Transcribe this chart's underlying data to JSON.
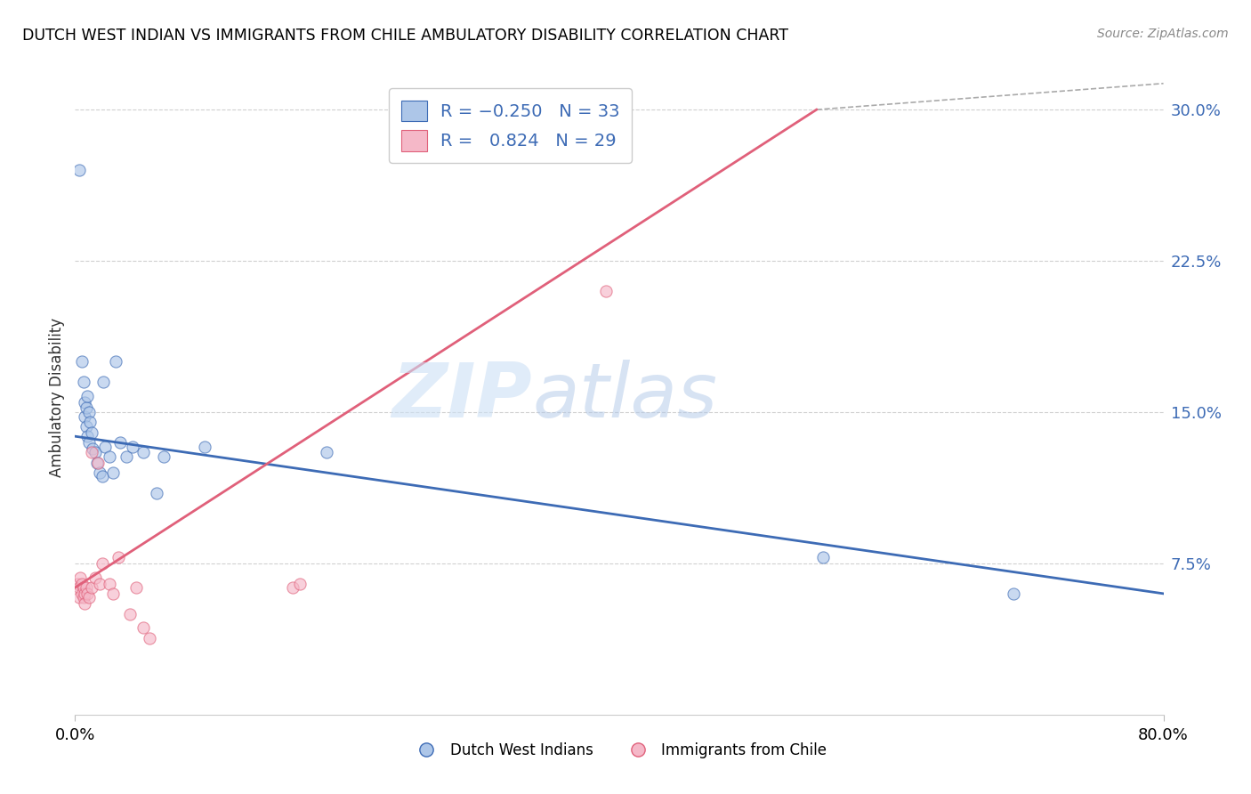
{
  "title": "DUTCH WEST INDIAN VS IMMIGRANTS FROM CHILE AMBULATORY DISABILITY CORRELATION CHART",
  "source": "Source: ZipAtlas.com",
  "ylabel": "Ambulatory Disability",
  "xmin": 0.0,
  "xmax": 0.8,
  "ymin": 0.0,
  "ymax": 0.315,
  "watermark_zip": "ZIP",
  "watermark_atlas": "atlas",
  "blue_color": "#adc6e8",
  "pink_color": "#f5b8c8",
  "blue_line_color": "#3d6bb5",
  "pink_line_color": "#e0607a",
  "blue_line": [
    [
      0.0,
      0.138
    ],
    [
      0.8,
      0.06
    ]
  ],
  "pink_line": [
    [
      0.0,
      0.063
    ],
    [
      0.545,
      0.3
    ]
  ],
  "gray_dash_line": [
    [
      0.545,
      0.3
    ],
    [
      0.8,
      0.313
    ]
  ],
  "blue_scatter": [
    [
      0.003,
      0.27
    ],
    [
      0.005,
      0.175
    ],
    [
      0.006,
      0.165
    ],
    [
      0.007,
      0.155
    ],
    [
      0.007,
      0.148
    ],
    [
      0.008,
      0.152
    ],
    [
      0.008,
      0.143
    ],
    [
      0.009,
      0.158
    ],
    [
      0.009,
      0.138
    ],
    [
      0.01,
      0.15
    ],
    [
      0.01,
      0.135
    ],
    [
      0.011,
      0.145
    ],
    [
      0.012,
      0.14
    ],
    [
      0.013,
      0.132
    ],
    [
      0.015,
      0.13
    ],
    [
      0.016,
      0.125
    ],
    [
      0.018,
      0.12
    ],
    [
      0.02,
      0.118
    ],
    [
      0.021,
      0.165
    ],
    [
      0.022,
      0.133
    ],
    [
      0.025,
      0.128
    ],
    [
      0.028,
      0.12
    ],
    [
      0.03,
      0.175
    ],
    [
      0.033,
      0.135
    ],
    [
      0.038,
      0.128
    ],
    [
      0.042,
      0.133
    ],
    [
      0.05,
      0.13
    ],
    [
      0.06,
      0.11
    ],
    [
      0.065,
      0.128
    ],
    [
      0.095,
      0.133
    ],
    [
      0.185,
      0.13
    ],
    [
      0.55,
      0.078
    ],
    [
      0.69,
      0.06
    ]
  ],
  "pink_scatter": [
    [
      0.002,
      0.065
    ],
    [
      0.003,
      0.063
    ],
    [
      0.003,
      0.058
    ],
    [
      0.004,
      0.068
    ],
    [
      0.005,
      0.065
    ],
    [
      0.005,
      0.06
    ],
    [
      0.006,
      0.063
    ],
    [
      0.006,
      0.058
    ],
    [
      0.007,
      0.06
    ],
    [
      0.007,
      0.055
    ],
    [
      0.008,
      0.063
    ],
    [
      0.009,
      0.06
    ],
    [
      0.01,
      0.058
    ],
    [
      0.012,
      0.063
    ],
    [
      0.012,
      0.13
    ],
    [
      0.015,
      0.068
    ],
    [
      0.017,
      0.125
    ],
    [
      0.018,
      0.065
    ],
    [
      0.02,
      0.075
    ],
    [
      0.025,
      0.065
    ],
    [
      0.028,
      0.06
    ],
    [
      0.032,
      0.078
    ],
    [
      0.04,
      0.05
    ],
    [
      0.045,
      0.063
    ],
    [
      0.05,
      0.043
    ],
    [
      0.055,
      0.038
    ],
    [
      0.16,
      0.063
    ],
    [
      0.165,
      0.065
    ],
    [
      0.39,
      0.21
    ]
  ]
}
